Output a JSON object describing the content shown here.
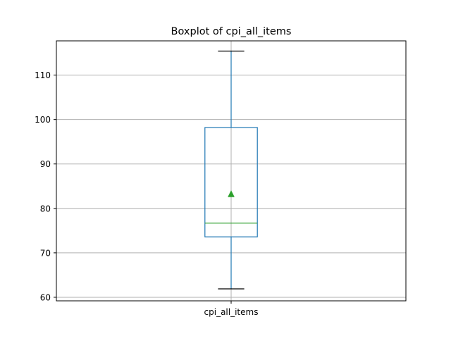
{
  "chart_data": {
    "type": "box",
    "title": "Boxplot of cpi_all_items",
    "xlabel": "",
    "ylabel": "",
    "categories": [
      "cpi_all_items"
    ],
    "series": [
      {
        "category": "cpi_all_items",
        "whisker_low": 61.9,
        "q1": 73.6,
        "median": 76.7,
        "q3": 98.2,
        "whisker_high": 115.4,
        "mean": 83.3
      }
    ],
    "y_ticks": [
      60,
      70,
      80,
      90,
      100,
      110
    ],
    "ylim": [
      59.2,
      117.7
    ],
    "grid": true,
    "colors": {
      "box": "#1f77b4",
      "median": "#2ca02c",
      "mean_marker": "#2ca02c",
      "whisker_cap": "#000000",
      "grid": "#b0b0b0",
      "axis": "#000000"
    }
  }
}
